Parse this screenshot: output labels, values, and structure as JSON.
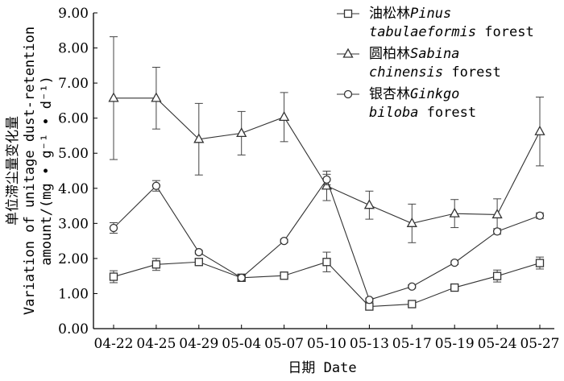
{
  "chart_data": {
    "type": "line",
    "categories": [
      "04-22",
      "04-25",
      "04-29",
      "05-04",
      "05-07",
      "05-10",
      "05-13",
      "05-17",
      "05-19",
      "05-24",
      "05-27"
    ],
    "ylim": [
      0,
      9
    ],
    "yticks": [
      "0.00",
      "1.00",
      "2.00",
      "3.00",
      "4.00",
      "5.00",
      "6.00",
      "7.00",
      "8.00",
      "9.00"
    ],
    "xlabel": "日期 Date",
    "ylabel_lines": [
      "单位滞尘量变化量",
      "Variation of unitage dust-retention",
      "amount/(mg • g⁻¹ • d⁻¹)"
    ],
    "legend_position": "top-right",
    "series": [
      {
        "marker": "square",
        "legend_lines": [
          [
            {
              "t": "油松林",
              "i": false
            },
            {
              "t": "Pinus",
              "i": true
            }
          ],
          [
            {
              "t": "tabulaeformis",
              "i": true
            },
            {
              "t": " forest",
              "i": false
            }
          ]
        ],
        "values": [
          1.48,
          1.83,
          1.9,
          1.45,
          1.51,
          1.9,
          0.63,
          0.7,
          1.17,
          1.5,
          1.87
        ],
        "errors": [
          0.17,
          0.17,
          0.08,
          0.1,
          0.05,
          0.28,
          0.06,
          0.05,
          0.05,
          0.17,
          0.17
        ]
      },
      {
        "marker": "triangle",
        "legend_lines": [
          [
            {
              "t": "圆柏林",
              "i": false
            },
            {
              "t": "Sabina",
              "i": true
            }
          ],
          [
            {
              "t": "chinensis",
              "i": true
            },
            {
              "t": " forest",
              "i": false
            }
          ]
        ],
        "values": [
          6.57,
          6.57,
          5.4,
          5.57,
          6.03,
          4.07,
          3.52,
          3.0,
          3.28,
          3.25,
          5.62
        ],
        "errors": [
          1.75,
          0.88,
          1.02,
          0.62,
          0.7,
          0.42,
          0.4,
          0.55,
          0.4,
          0.45,
          0.98
        ]
      },
      {
        "marker": "circle",
        "legend_lines": [
          [
            {
              "t": "银杏林",
              "i": false
            },
            {
              "t": "Ginkgo",
              "i": true
            }
          ],
          [
            {
              "t": "biloba",
              "i": true
            },
            {
              "t": " forest",
              "i": false
            }
          ]
        ],
        "values": [
          2.87,
          4.07,
          2.18,
          1.45,
          2.5,
          4.25,
          0.82,
          1.2,
          1.88,
          2.77,
          3.22
        ],
        "errors": [
          0.15,
          0.15,
          0.05,
          0.07,
          0.05,
          0.15,
          0.05,
          0.05,
          0.05,
          0.08,
          0.08
        ]
      }
    ]
  }
}
